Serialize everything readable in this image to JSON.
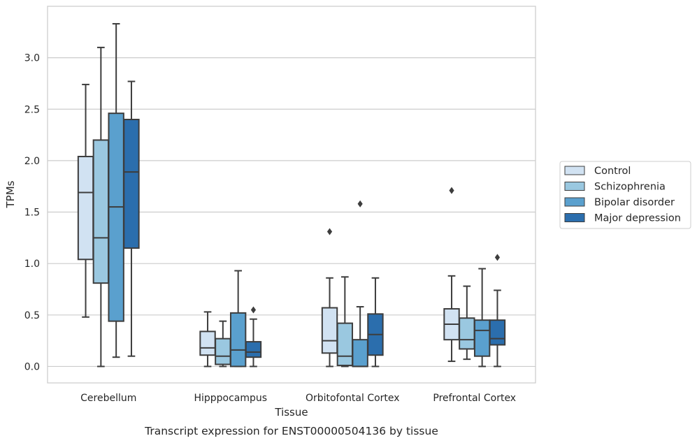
{
  "chart_data": {
    "type": "boxplot",
    "caption": "Transcript expression for ENST00000504136 by tissue",
    "xlabel": "Tissue",
    "ylabel": "TPMs",
    "ylim": [
      -0.16,
      3.5
    ],
    "yticks": [
      "0.0",
      "0.5",
      "1.0",
      "1.5",
      "2.0",
      "2.5",
      "3.0"
    ],
    "grid": "horizontal",
    "legend_position": "right",
    "categories": [
      "Cerebellum",
      "Hipppocampus",
      "Orbitofontal Cortex",
      "Prefrontal Cortex"
    ],
    "series": [
      {
        "name": "Control",
        "color": "#d1e2f2",
        "boxes": [
          {
            "whislo": 0.48,
            "q1": 1.04,
            "med": 1.69,
            "q3": 2.04,
            "whishi": 2.74,
            "fliers": []
          },
          {
            "whislo": 0.0,
            "q1": 0.11,
            "med": 0.18,
            "q3": 0.34,
            "whishi": 0.53,
            "fliers": []
          },
          {
            "whislo": 0.0,
            "q1": 0.13,
            "med": 0.25,
            "q3": 0.57,
            "whishi": 0.86,
            "fliers": [
              1.31
            ]
          },
          {
            "whislo": 0.05,
            "q1": 0.26,
            "med": 0.41,
            "q3": 0.56,
            "whishi": 0.88,
            "fliers": [
              1.71
            ]
          }
        ]
      },
      {
        "name": "Schizophrenia",
        "color": "#9ac8e0",
        "boxes": [
          {
            "whislo": 0.0,
            "q1": 0.81,
            "med": 1.25,
            "q3": 2.2,
            "whishi": 3.1,
            "fliers": []
          },
          {
            "whislo": 0.0,
            "q1": 0.02,
            "med": 0.1,
            "q3": 0.27,
            "whishi": 0.44,
            "fliers": []
          },
          {
            "whislo": 0.0,
            "q1": 0.01,
            "med": 0.1,
            "q3": 0.42,
            "whishi": 0.87,
            "fliers": []
          },
          {
            "whislo": 0.07,
            "q1": 0.17,
            "med": 0.26,
            "q3": 0.47,
            "whishi": 0.78,
            "fliers": []
          }
        ]
      },
      {
        "name": "Bipolar disorder",
        "color": "#5aa0ce",
        "boxes": [
          {
            "whislo": 0.09,
            "q1": 0.44,
            "med": 1.55,
            "q3": 2.46,
            "whishi": 3.33,
            "fliers": []
          },
          {
            "whislo": 0.0,
            "q1": 0.0,
            "med": 0.16,
            "q3": 0.52,
            "whishi": 0.93,
            "fliers": []
          },
          {
            "whislo": 0.0,
            "q1": 0.0,
            "med": 0.0,
            "q3": 0.26,
            "whishi": 0.58,
            "fliers": [
              1.58
            ]
          },
          {
            "whislo": 0.0,
            "q1": 0.1,
            "med": 0.35,
            "q3": 0.45,
            "whishi": 0.95,
            "fliers": []
          }
        ]
      },
      {
        "name": "Major depression",
        "color": "#2b6ead",
        "boxes": [
          {
            "whislo": 0.1,
            "q1": 1.15,
            "med": 1.89,
            "q3": 2.4,
            "whishi": 2.77,
            "fliers": []
          },
          {
            "whislo": 0.0,
            "q1": 0.09,
            "med": 0.14,
            "q3": 0.24,
            "whishi": 0.46,
            "fliers": [
              0.55
            ]
          },
          {
            "whislo": 0.0,
            "q1": 0.11,
            "med": 0.31,
            "q3": 0.51,
            "whishi": 0.86,
            "fliers": []
          },
          {
            "whislo": 0.0,
            "q1": 0.21,
            "med": 0.27,
            "q3": 0.45,
            "whishi": 0.74,
            "fliers": [
              1.06
            ]
          }
        ]
      }
    ]
  }
}
